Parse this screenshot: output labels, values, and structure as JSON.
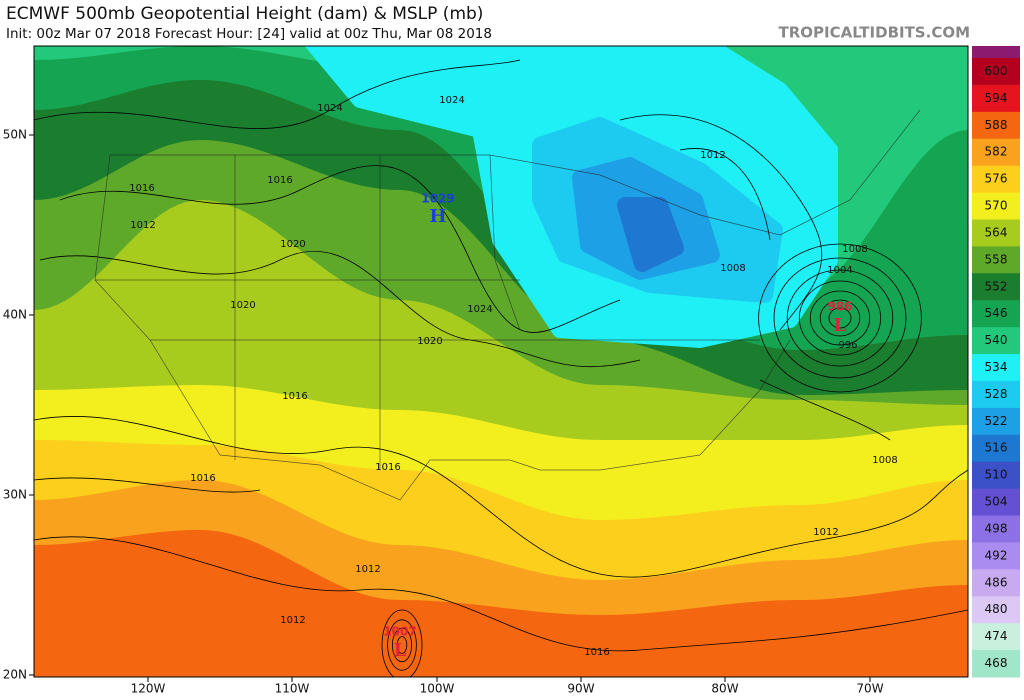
{
  "header": {
    "title": "ECMWF 500mb Geopotential Height (dam) & MSLP (mb)",
    "subtitle": "Init: 00z Mar 07 2018   Forecast Hour: [24]   valid at 00z Thu, Mar 08 2018",
    "site": "TROPICALTIDBITS.COM"
  },
  "axes": {
    "lat_labels": [
      "50N",
      "40N",
      "30N",
      "20N"
    ],
    "lon_labels": [
      "120W",
      "110W",
      "100W",
      "90W",
      "80W",
      "70W"
    ]
  },
  "colorbar": {
    "entries": [
      {
        "label": 600,
        "color": "#b4001e"
      },
      {
        "label": 594,
        "color": "#e6141e"
      },
      {
        "label": 588,
        "color": "#f4660f"
      },
      {
        "label": 582,
        "color": "#f9a21e"
      },
      {
        "label": 576,
        "color": "#fbcf1c"
      },
      {
        "label": 570,
        "color": "#f3ee1e"
      },
      {
        "label": 564,
        "color": "#a8cc1e"
      },
      {
        "label": 558,
        "color": "#5ea82a"
      },
      {
        "label": 552,
        "color": "#1b7d2e"
      },
      {
        "label": 546,
        "color": "#15a452"
      },
      {
        "label": 540,
        "color": "#22c97a"
      },
      {
        "label": 534,
        "color": "#1ef0f5"
      },
      {
        "label": 528,
        "color": "#1ecbf0"
      },
      {
        "label": 522,
        "color": "#1ea0e6"
      },
      {
        "label": 516,
        "color": "#1e78d2"
      },
      {
        "label": 510,
        "color": "#3c50c8"
      },
      {
        "label": 504,
        "color": "#6450d2"
      },
      {
        "label": 498,
        "color": "#8c70e6"
      },
      {
        "label": 492,
        "color": "#aa8cf0"
      },
      {
        "label": 486,
        "color": "#c8aaf0"
      },
      {
        "label": 480,
        "color": "#dcc8f5"
      },
      {
        "label": 474,
        "color": "#c8f0dc"
      },
      {
        "label": 468,
        "color": "#a0e6c8"
      }
    ]
  },
  "map_labels": {
    "isobars": [
      "1024",
      "1024",
      "1012",
      "1016",
      "1016",
      "1012",
      "1020",
      "1020",
      "1024",
      "1020",
      "1016",
      "1016",
      "1016",
      "1012",
      "1012",
      "1016",
      "1012",
      "1008",
      "1008",
      "1008",
      "1004",
      "996"
    ],
    "highs": [
      {
        "pressure": "1029",
        "symbol": "H"
      }
    ],
    "lows": [
      {
        "pressure": "986",
        "symbol": "L"
      },
      {
        "pressure": "1007",
        "symbol": "L"
      }
    ]
  }
}
